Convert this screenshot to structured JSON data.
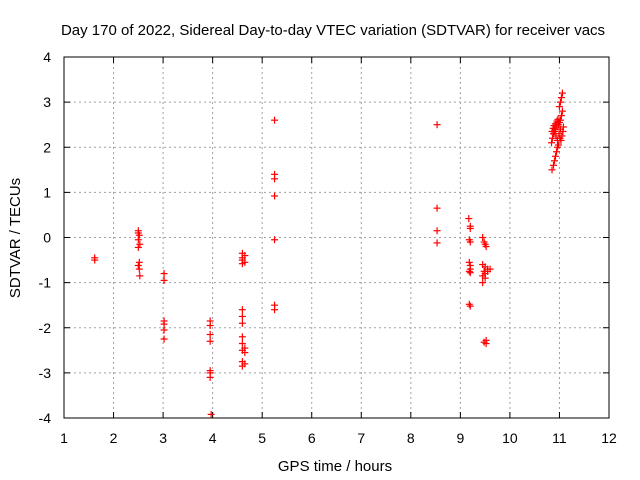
{
  "chart_data": {
    "type": "scatter",
    "title": "Day 170 of 2022, Sidereal Day-to-day VTEC variation (SDTVAR) for receiver vacs",
    "xlabel": "GPS time / hours",
    "ylabel": "SDTVAR / TECUs",
    "xlim": [
      1,
      12
    ],
    "ylim": [
      -4,
      4
    ],
    "xticks": [
      1,
      2,
      3,
      4,
      5,
      6,
      7,
      8,
      9,
      10,
      11,
      12
    ],
    "yticks": [
      -4,
      -3,
      -2,
      -1,
      0,
      1,
      2,
      3,
      4
    ],
    "grid": true,
    "marker": "+",
    "color": "#ff0000",
    "series": [
      {
        "name": "SDTVAR",
        "points": [
          [
            1.62,
            -0.45
          ],
          [
            1.62,
            -0.5
          ],
          [
            2.5,
            0.15
          ],
          [
            2.5,
            0.1
          ],
          [
            2.52,
            0.05
          ],
          [
            2.5,
            -0.05
          ],
          [
            2.53,
            -0.15
          ],
          [
            2.5,
            -0.22
          ],
          [
            2.52,
            -0.55
          ],
          [
            2.5,
            -0.62
          ],
          [
            2.52,
            -0.7
          ],
          [
            2.53,
            -0.85
          ],
          [
            3.02,
            -0.8
          ],
          [
            3.02,
            -0.95
          ],
          [
            3.02,
            -1.85
          ],
          [
            3.02,
            -1.92
          ],
          [
            3.02,
            -2.05
          ],
          [
            3.02,
            -2.25
          ],
          [
            3.95,
            -1.85
          ],
          [
            3.95,
            -1.95
          ],
          [
            3.95,
            -2.15
          ],
          [
            3.95,
            -2.3
          ],
          [
            3.95,
            -2.95
          ],
          [
            3.95,
            -3.0
          ],
          [
            3.95,
            -3.1
          ],
          [
            3.97,
            -3.92
          ],
          [
            4.6,
            -0.35
          ],
          [
            4.6,
            -0.45
          ],
          [
            4.6,
            -0.5
          ],
          [
            4.6,
            -0.58
          ],
          [
            4.6,
            -1.6
          ],
          [
            4.6,
            -1.75
          ],
          [
            4.6,
            -1.9
          ],
          [
            4.6,
            -2.2
          ],
          [
            4.6,
            -2.35
          ],
          [
            4.6,
            -2.5
          ],
          [
            4.6,
            -2.75
          ],
          [
            4.6,
            -2.85
          ],
          [
            4.65,
            -0.4
          ],
          [
            4.65,
            -0.55
          ],
          [
            4.65,
            -2.45
          ],
          [
            4.65,
            -2.55
          ],
          [
            4.65,
            -2.8
          ],
          [
            5.25,
            2.6
          ],
          [
            5.25,
            1.4
          ],
          [
            5.25,
            1.3
          ],
          [
            5.25,
            0.92
          ],
          [
            5.25,
            -0.05
          ],
          [
            5.25,
            -1.5
          ],
          [
            5.25,
            -1.6
          ],
          [
            8.53,
            2.5
          ],
          [
            8.53,
            0.65
          ],
          [
            8.53,
            0.15
          ],
          [
            8.53,
            -0.12
          ],
          [
            9.17,
            0.42
          ],
          [
            9.2,
            0.25
          ],
          [
            9.2,
            0.2
          ],
          [
            9.18,
            -0.05
          ],
          [
            9.2,
            -0.1
          ],
          [
            9.18,
            -0.55
          ],
          [
            9.2,
            -0.62
          ],
          [
            9.2,
            -0.7
          ],
          [
            9.18,
            -0.75
          ],
          [
            9.2,
            -0.78
          ],
          [
            9.18,
            -1.48
          ],
          [
            9.2,
            -1.52
          ],
          [
            9.45,
            0.0
          ],
          [
            9.48,
            -0.1
          ],
          [
            9.5,
            -0.15
          ],
          [
            9.52,
            -0.2
          ],
          [
            9.45,
            -0.6
          ],
          [
            9.5,
            -0.65
          ],
          [
            9.55,
            -0.7
          ],
          [
            9.48,
            -0.75
          ],
          [
            9.5,
            -0.8
          ],
          [
            9.45,
            -0.85
          ],
          [
            9.5,
            -0.9
          ],
          [
            9.45,
            -1.0
          ],
          [
            9.6,
            -0.7
          ],
          [
            9.55,
            -0.75
          ],
          [
            9.52,
            -2.28
          ],
          [
            9.48,
            -2.32
          ],
          [
            9.52,
            -2.35
          ],
          [
            10.85,
            1.5
          ],
          [
            10.88,
            1.6
          ],
          [
            10.9,
            1.7
          ],
          [
            10.92,
            1.8
          ],
          [
            10.94,
            1.9
          ],
          [
            10.96,
            2.0
          ],
          [
            10.84,
            2.1
          ],
          [
            10.86,
            2.2
          ],
          [
            10.88,
            2.3
          ],
          [
            10.9,
            2.35
          ],
          [
            10.92,
            2.4
          ],
          [
            10.95,
            2.45
          ],
          [
            10.98,
            2.5
          ],
          [
            11.0,
            2.55
          ],
          [
            11.02,
            2.6
          ],
          [
            11.04,
            2.7
          ],
          [
            11.06,
            2.8
          ],
          [
            11.0,
            2.9
          ],
          [
            11.02,
            3.0
          ],
          [
            11.04,
            3.1
          ],
          [
            11.06,
            3.2
          ],
          [
            10.85,
            2.35
          ],
          [
            10.87,
            2.42
          ],
          [
            10.89,
            2.48
          ],
          [
            10.92,
            2.52
          ],
          [
            10.95,
            2.58
          ],
          [
            10.97,
            2.62
          ],
          [
            10.99,
            2.3
          ],
          [
            11.01,
            2.2
          ],
          [
            11.03,
            2.15
          ],
          [
            11.05,
            2.25
          ],
          [
            11.07,
            2.35
          ],
          [
            11.08,
            2.45
          ],
          [
            11.02,
            2.4
          ],
          [
            10.98,
            2.05
          ],
          [
            10.96,
            2.15
          ],
          [
            10.93,
            2.25
          ]
        ]
      }
    ]
  }
}
